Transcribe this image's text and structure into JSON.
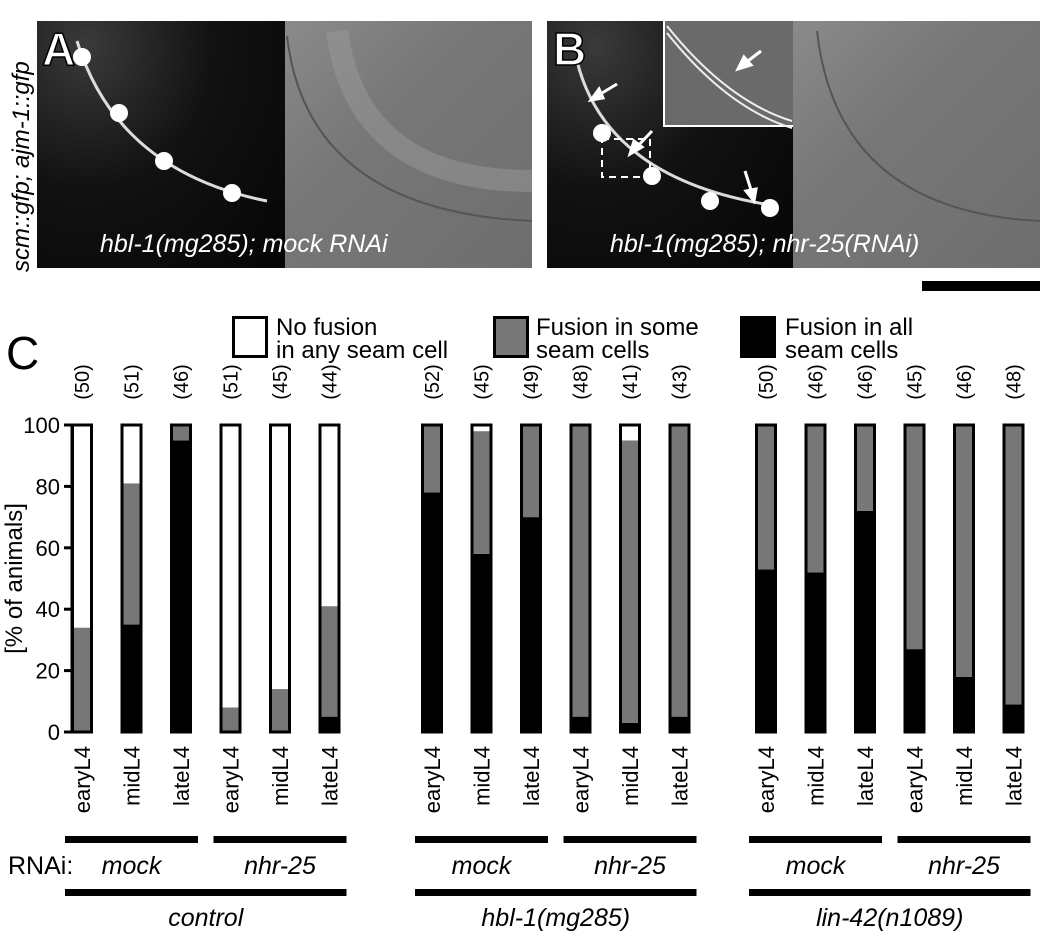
{
  "panels": {
    "side_label": "scm::gfp; ajm-1::gfp",
    "A": {
      "letter": "A",
      "caption": "hbl-1(mg285); mock RNAi"
    },
    "B": {
      "letter": "B",
      "caption": "hbl-1(mg285); nhr-25(RNAi)"
    },
    "C": {
      "letter": "C"
    }
  },
  "legend": {
    "items": [
      {
        "line1": "No fusion",
        "line2": "in any seam cell",
        "color": "#ffffff"
      },
      {
        "line1": "Fusion in some",
        "line2": "seam cells",
        "color": "#777777"
      },
      {
        "line1": "Fusion in all",
        "line2": "seam cells",
        "color": "#000000"
      }
    ]
  },
  "chart_data": {
    "type": "bar",
    "stacked": true,
    "ylabel": "[% of animals]",
    "ylim": [
      0,
      100
    ],
    "yticks": [
      0,
      20,
      40,
      60,
      80,
      100
    ],
    "categories": [
      "earyL4",
      "midL4",
      "lateL4",
      "earyL4",
      "midL4",
      "lateL4",
      "earyL4",
      "midL4",
      "lateL4",
      "earyL4",
      "midL4",
      "lateL4",
      "earyL4",
      "midL4",
      "lateL4",
      "earyL4",
      "midL4",
      "lateL4"
    ],
    "counts": [
      "(50)",
      "(51)",
      "(46)",
      "(51)",
      "(45)",
      "(44)",
      "(52)",
      "(45)",
      "(49)",
      "(48)",
      "(41)",
      "(43)",
      "(50)",
      "(46)",
      "(46)",
      "(45)",
      "(46)",
      "(48)"
    ],
    "series": [
      {
        "name": "Fusion in all seam cells",
        "color": "#000000",
        "values": [
          0,
          35,
          95,
          0,
          0,
          5,
          78,
          58,
          70,
          5,
          3,
          5,
          53,
          52,
          72,
          27,
          18,
          9
        ]
      },
      {
        "name": "Fusion in some seam cells",
        "color": "#777777",
        "values": [
          34,
          46,
          5,
          8,
          14,
          36,
          22,
          40,
          30,
          95,
          92,
          95,
          47,
          48,
          28,
          73,
          82,
          91
        ]
      },
      {
        "name": "No fusion in any seam cell",
        "color": "#ffffff",
        "values": [
          66,
          19,
          0,
          92,
          86,
          59,
          0,
          2,
          0,
          0,
          5,
          0,
          0,
          0,
          0,
          0,
          0,
          0
        ]
      }
    ],
    "rnai_label": "RNAi:",
    "rnai_groups": [
      "mock",
      "nhr-25",
      "mock",
      "nhr-25",
      "mock",
      "nhr-25"
    ],
    "strain_groups": [
      "control",
      "hbl-1(mg285)",
      "lin-42(n1089)"
    ]
  }
}
